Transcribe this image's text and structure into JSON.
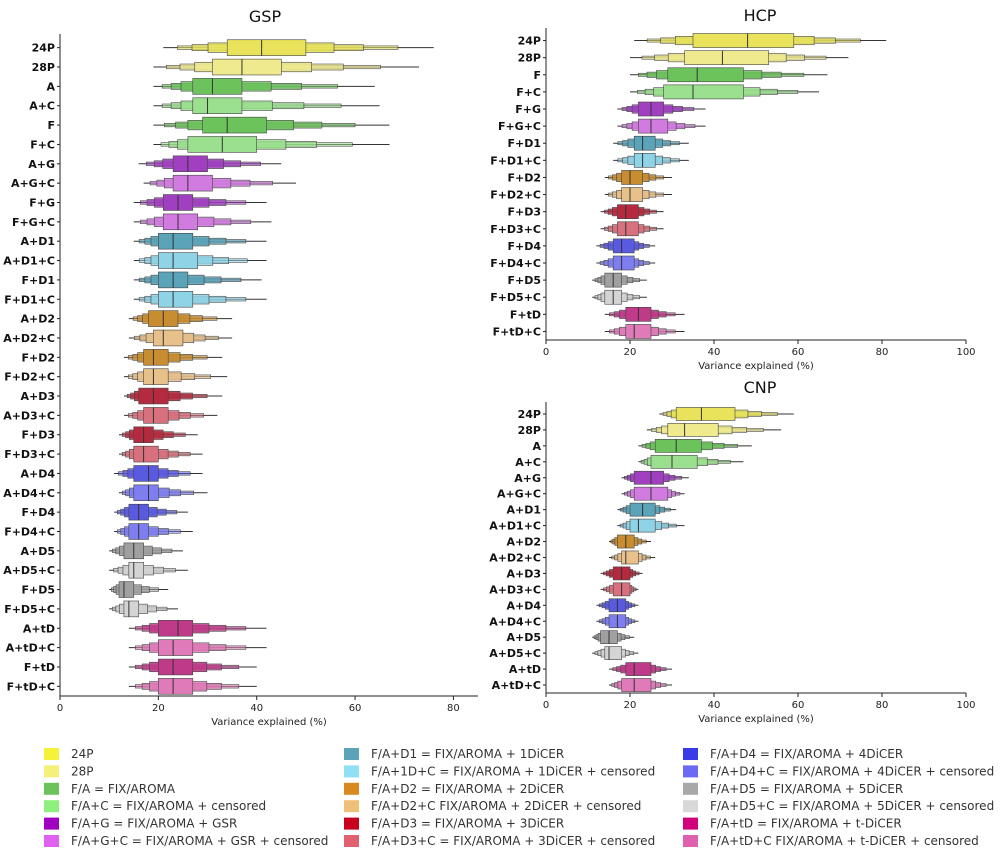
{
  "chart_data": [
    {
      "type": "boxen",
      "id": "gsp",
      "title": "GSP",
      "xlabel": "Variance explained (%)",
      "xlim": [
        0,
        85
      ],
      "xticks": [
        0,
        20,
        40,
        60,
        80
      ],
      "series": [
        {
          "name": "24P",
          "color": "#e8e35a",
          "q1": 34,
          "median": 41,
          "q3": 50,
          "min": 21,
          "max": 76
        },
        {
          "name": "28P",
          "color": "#f0ea8e",
          "q1": 31,
          "median": 37,
          "q3": 45,
          "min": 19,
          "max": 73
        },
        {
          "name": "A",
          "color": "#6cc35c",
          "q1": 27,
          "median": 31,
          "q3": 37,
          "min": 19,
          "max": 64
        },
        {
          "name": "A+C",
          "color": "#9be08f",
          "q1": 27,
          "median": 30,
          "q3": 37,
          "min": 19,
          "max": 65
        },
        {
          "name": "F",
          "color": "#6cc35c",
          "q1": 29,
          "median": 34,
          "q3": 42,
          "min": 19,
          "max": 67
        },
        {
          "name": "F+C",
          "color": "#9be08f",
          "q1": 26,
          "median": 33,
          "q3": 40,
          "min": 19,
          "max": 67
        },
        {
          "name": "A+G",
          "color": "#a040c0",
          "q1": 23,
          "median": 26,
          "q3": 30,
          "min": 16,
          "max": 45
        },
        {
          "name": "A+G+C",
          "color": "#d17be0",
          "q1": 23,
          "median": 26,
          "q3": 31,
          "min": 17,
          "max": 48
        },
        {
          "name": "F+G",
          "color": "#a040c0",
          "q1": 21,
          "median": 24,
          "q3": 27,
          "min": 15,
          "max": 42
        },
        {
          "name": "F+G+C",
          "color": "#d17be0",
          "q1": 21,
          "median": 24,
          "q3": 28,
          "min": 15,
          "max": 43
        },
        {
          "name": "A+D1",
          "color": "#5aa3b8",
          "q1": 20,
          "median": 23,
          "q3": 27,
          "min": 15,
          "max": 42
        },
        {
          "name": "A+D1+C",
          "color": "#8fd3e6",
          "q1": 20,
          "median": 23,
          "q3": 28,
          "min": 15,
          "max": 42
        },
        {
          "name": "F+D1",
          "color": "#5aa3b8",
          "q1": 20,
          "median": 23,
          "q3": 26,
          "min": 15,
          "max": 41
        },
        {
          "name": "F+D1+C",
          "color": "#8fd3e6",
          "q1": 20,
          "median": 23,
          "q3": 27,
          "min": 15,
          "max": 42
        },
        {
          "name": "A+D2",
          "color": "#c88d30",
          "q1": 18,
          "median": 21,
          "q3": 24,
          "min": 14,
          "max": 35
        },
        {
          "name": "A+D2+C",
          "color": "#e8c08a",
          "q1": 19,
          "median": 21,
          "q3": 25,
          "min": 14,
          "max": 35
        },
        {
          "name": "F+D2",
          "color": "#c88d30",
          "q1": 17,
          "median": 19,
          "q3": 22,
          "min": 13,
          "max": 33
        },
        {
          "name": "F+D2+C",
          "color": "#e8c08a",
          "q1": 17,
          "median": 19,
          "q3": 22,
          "min": 13,
          "max": 34
        },
        {
          "name": "A+D3",
          "color": "#b52a3e",
          "q1": 16,
          "median": 19,
          "q3": 22,
          "min": 13,
          "max": 33
        },
        {
          "name": "A+D3+C",
          "color": "#d9707e",
          "q1": 17,
          "median": 19,
          "q3": 22,
          "min": 13,
          "max": 32
        },
        {
          "name": "F+D3",
          "color": "#b52a3e",
          "q1": 15,
          "median": 17,
          "q3": 19,
          "min": 12,
          "max": 28
        },
        {
          "name": "F+D3+C",
          "color": "#d9707e",
          "q1": 15,
          "median": 17,
          "q3": 20,
          "min": 12,
          "max": 29
        },
        {
          "name": "A+D4",
          "color": "#5a5ae0",
          "q1": 15,
          "median": 18,
          "q3": 20,
          "min": 11,
          "max": 29
        },
        {
          "name": "A+D4+C",
          "color": "#7e7ef0",
          "q1": 15,
          "median": 18,
          "q3": 20,
          "min": 12,
          "max": 30
        },
        {
          "name": "F+D4",
          "color": "#5a5ae0",
          "q1": 14,
          "median": 16,
          "q3": 18,
          "min": 11,
          "max": 26
        },
        {
          "name": "F+D4+C",
          "color": "#7e7ef0",
          "q1": 14,
          "median": 16,
          "q3": 18,
          "min": 11,
          "max": 27
        },
        {
          "name": "A+D5",
          "color": "#a0a0a0",
          "q1": 13,
          "median": 15,
          "q3": 17,
          "min": 10,
          "max": 25
        },
        {
          "name": "A+D5+C",
          "color": "#d4d4d4",
          "q1": 14,
          "median": 15,
          "q3": 17,
          "min": 10,
          "max": 26
        },
        {
          "name": "F+D5",
          "color": "#a0a0a0",
          "q1": 12,
          "median": 13,
          "q3": 15,
          "min": 10,
          "max": 22
        },
        {
          "name": "F+D5+C",
          "color": "#d4d4d4",
          "q1": 13,
          "median": 14,
          "q3": 16,
          "min": 10,
          "max": 24
        },
        {
          "name": "A+tD",
          "color": "#c03a8a",
          "q1": 20,
          "median": 24,
          "q3": 27,
          "min": 14,
          "max": 42
        },
        {
          "name": "A+tD+C",
          "color": "#e07ab8",
          "q1": 20,
          "median": 23,
          "q3": 27,
          "min": 14,
          "max": 42
        },
        {
          "name": "F+tD",
          "color": "#c03a8a",
          "q1": 20,
          "median": 23,
          "q3": 27,
          "min": 14,
          "max": 40
        },
        {
          "name": "F+tD+C",
          "color": "#e07ab8",
          "q1": 20,
          "median": 23,
          "q3": 27,
          "min": 14,
          "max": 40
        }
      ]
    },
    {
      "type": "boxen",
      "id": "hcp",
      "title": "HCP",
      "xlabel": "Variance explained (%)",
      "xlim": [
        0,
        100
      ],
      "xticks": [
        0,
        20,
        40,
        60,
        80,
        100
      ],
      "series": [
        {
          "name": "24P",
          "color": "#e8e35a",
          "q1": 35,
          "median": 48,
          "q3": 59,
          "min": 21,
          "max": 81
        },
        {
          "name": "28P",
          "color": "#f0ea8e",
          "q1": 33,
          "median": 42,
          "q3": 53,
          "min": 20,
          "max": 72
        },
        {
          "name": "F",
          "color": "#6cc35c",
          "q1": 29,
          "median": 36,
          "q3": 47,
          "min": 20,
          "max": 67
        },
        {
          "name": "F+C",
          "color": "#9be08f",
          "q1": 28,
          "median": 35,
          "q3": 47,
          "min": 20,
          "max": 65
        },
        {
          "name": "F+G",
          "color": "#a040c0",
          "q1": 22,
          "median": 25,
          "q3": 28,
          "min": 17,
          "max": 38
        },
        {
          "name": "F+G+C",
          "color": "#d17be0",
          "q1": 22,
          "median": 25,
          "q3": 29,
          "min": 17,
          "max": 38
        },
        {
          "name": "F+D1",
          "color": "#5aa3b8",
          "q1": 21,
          "median": 23,
          "q3": 26,
          "min": 16,
          "max": 34
        },
        {
          "name": "F+D1+C",
          "color": "#8fd3e6",
          "q1": 21,
          "median": 23,
          "q3": 26,
          "min": 16,
          "max": 34
        },
        {
          "name": "F+D2",
          "color": "#c88d30",
          "q1": 18,
          "median": 20,
          "q3": 23,
          "min": 14,
          "max": 30
        },
        {
          "name": "F+D2+C",
          "color": "#e8c08a",
          "q1": 18,
          "median": 20,
          "q3": 23,
          "min": 14,
          "max": 30
        },
        {
          "name": "F+D3",
          "color": "#b52a3e",
          "q1": 17,
          "median": 19,
          "q3": 22,
          "min": 13,
          "max": 28
        },
        {
          "name": "F+D3+C",
          "color": "#d9707e",
          "q1": 17,
          "median": 19,
          "q3": 22,
          "min": 13,
          "max": 28
        },
        {
          "name": "F+D4",
          "color": "#5a5ae0",
          "q1": 16,
          "median": 18,
          "q3": 21,
          "min": 12,
          "max": 26
        },
        {
          "name": "F+D4+C",
          "color": "#7e7ef0",
          "q1": 16,
          "median": 18,
          "q3": 21,
          "min": 12,
          "max": 26
        },
        {
          "name": "F+D5",
          "color": "#a0a0a0",
          "q1": 14,
          "median": 16,
          "q3": 18,
          "min": 11,
          "max": 24
        },
        {
          "name": "F+D5+C",
          "color": "#d4d4d4",
          "q1": 14,
          "median": 16,
          "q3": 18,
          "min": 11,
          "max": 24
        },
        {
          "name": "F+tD",
          "color": "#c03a8a",
          "q1": 19,
          "median": 22,
          "q3": 25,
          "min": 14,
          "max": 33
        },
        {
          "name": "F+tD+C",
          "color": "#e07ab8",
          "q1": 19,
          "median": 21,
          "q3": 25,
          "min": 14,
          "max": 33
        }
      ]
    },
    {
      "type": "boxen",
      "id": "cnp",
      "title": "CNP",
      "xlabel": "Variance explained (%)",
      "xlim": [
        0,
        100
      ],
      "xticks": [
        0,
        20,
        40,
        60,
        80,
        100
      ],
      "series": [
        {
          "name": "24P",
          "color": "#e8e35a",
          "q1": 31,
          "median": 37,
          "q3": 45,
          "min": 27,
          "max": 59
        },
        {
          "name": "28P",
          "color": "#f0ea8e",
          "q1": 29,
          "median": 33,
          "q3": 41,
          "min": 24,
          "max": 56
        },
        {
          "name": "A",
          "color": "#6cc35c",
          "q1": 26,
          "median": 31,
          "q3": 37,
          "min": 22,
          "max": 49
        },
        {
          "name": "A+C",
          "color": "#9be08f",
          "q1": 25,
          "median": 30,
          "q3": 36,
          "min": 22,
          "max": 47
        },
        {
          "name": "A+G",
          "color": "#a040c0",
          "q1": 21,
          "median": 25,
          "q3": 28,
          "min": 18,
          "max": 34
        },
        {
          "name": "A+G+C",
          "color": "#d17be0",
          "q1": 21,
          "median": 25,
          "q3": 29,
          "min": 18,
          "max": 33
        },
        {
          "name": "A+D1",
          "color": "#5aa3b8",
          "q1": 20,
          "median": 23,
          "q3": 26,
          "min": 17,
          "max": 31
        },
        {
          "name": "A+D1+C",
          "color": "#8fd3e6",
          "q1": 20,
          "median": 22,
          "q3": 26,
          "min": 17,
          "max": 33
        },
        {
          "name": "A+D2",
          "color": "#c88d30",
          "q1": 17,
          "median": 19,
          "q3": 21,
          "min": 15,
          "max": 25
        },
        {
          "name": "A+D2+C",
          "color": "#e8c08a",
          "q1": 18,
          "median": 19,
          "q3": 22,
          "min": 15,
          "max": 26
        },
        {
          "name": "A+D3",
          "color": "#b52a3e",
          "q1": 16,
          "median": 18,
          "q3": 20,
          "min": 13,
          "max": 23
        },
        {
          "name": "A+D3+C",
          "color": "#d9707e",
          "q1": 16,
          "median": 18,
          "q3": 20,
          "min": 13,
          "max": 22
        },
        {
          "name": "A+D4",
          "color": "#5a5ae0",
          "q1": 15,
          "median": 17,
          "q3": 19,
          "min": 12,
          "max": 22
        },
        {
          "name": "A+D4+C",
          "color": "#7e7ef0",
          "q1": 15,
          "median": 17,
          "q3": 19,
          "min": 12,
          "max": 22
        },
        {
          "name": "A+D5",
          "color": "#a0a0a0",
          "q1": 13,
          "median": 15,
          "q3": 17,
          "min": 11,
          "max": 21
        },
        {
          "name": "A+D5+C",
          "color": "#d4d4d4",
          "q1": 14,
          "median": 15,
          "q3": 18,
          "min": 11,
          "max": 22
        },
        {
          "name": "A+tD",
          "color": "#c03a8a",
          "q1": 19,
          "median": 21,
          "q3": 25,
          "min": 15,
          "max": 30
        },
        {
          "name": "A+tD+C",
          "color": "#e07ab8",
          "q1": 18,
          "median": 21,
          "q3": 25,
          "min": 15,
          "max": 30
        }
      ]
    }
  ],
  "legend": {
    "columns": [
      [
        {
          "label": "24P",
          "color": "#f5f23a"
        },
        {
          "label": "28P",
          "color": "#f5f07a"
        },
        {
          "label": "F/A = FIX/AROMA",
          "color": "#6cc35c"
        },
        {
          "label": "F/A+C = FIX/AROMA + censored",
          "color": "#8ef07c"
        },
        {
          "label": "F/A+G = FIX/AROMA + GSR",
          "color": "#a000c0"
        },
        {
          "label": "F/A+G+C = FIX/AROMA + GSR + censored",
          "color": "#e060f0"
        }
      ],
      [
        {
          "label": "F/A+D1 = FIX/AROMA + 1DiCER",
          "color": "#5aa3b8"
        },
        {
          "label": "F/A+1D+C = FIX/AROMA + 1DiCER + censored",
          "color": "#8fe0f5"
        },
        {
          "label": "F/A+D2 = FIX/AROMA + 2DiCER",
          "color": "#d88a20"
        },
        {
          "label": "F/A+D2+C FIX/AROMA + 2DiCER + censored",
          "color": "#f0c078"
        },
        {
          "label": "F/A+D3 = FIX/AROMA + 3DiCER",
          "color": "#c8001c"
        },
        {
          "label": "F/A+D3+C = FIX/AROMA + 3DiCER + censored",
          "color": "#e06070"
        }
      ],
      [
        {
          "label": "F/A+D4 = FIX/AROMA + 4DiCER",
          "color": "#3a3ae8"
        },
        {
          "label": "F/A+D4+C = FIX/AROMA + 4DiCER + censored",
          "color": "#6a6af5"
        },
        {
          "label": "F/A+D5 = FIX/AROMA + 5DiCER",
          "color": "#a8a8a8"
        },
        {
          "label": "F/A+D5+C = FIX/AROMA + 5DiCER + censored",
          "color": "#d8d8d8"
        },
        {
          "label": "F/A+tD = FIX/AROMA + t-DiCER",
          "color": "#d0007a"
        },
        {
          "label": "F/A+tD+C FIX/AROMA + t-DiCER + censored",
          "color": "#e060b0"
        }
      ]
    ]
  }
}
